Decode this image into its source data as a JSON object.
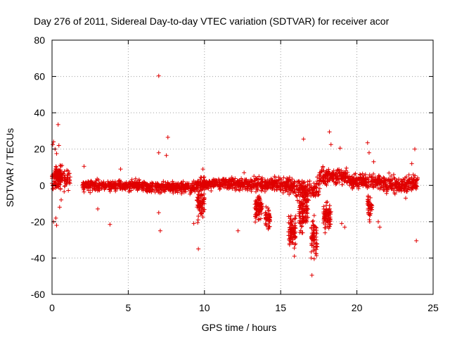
{
  "chart_data": {
    "type": "scatter",
    "title": "Day 276 of 2011, Sidereal Day-to-day VTEC variation (SDTVAR) for receiver acor",
    "xlabel": "GPS time / hours",
    "ylabel": "SDTVAR / TECUs",
    "xlim": [
      0,
      25
    ],
    "ylim": [
      -60,
      80
    ],
    "xticks": [
      "0",
      "5",
      "10",
      "15",
      "20",
      "25"
    ],
    "yticks": [
      "80",
      "60",
      "40",
      "20",
      "0",
      "-20",
      "-40",
      "-60"
    ],
    "grid": true,
    "series": [
      {
        "name": "SDTVAR",
        "color": "#e00000",
        "marker": "+",
        "points": [
          [
            0.05,
            22.5
          ],
          [
            0.1,
            24.0
          ],
          [
            0.2,
            20.0
          ],
          [
            0.4,
            33.5
          ],
          [
            0.45,
            22.0
          ],
          [
            0.3,
            17.5
          ],
          [
            0.1,
            -20.0
          ],
          [
            0.3,
            -22.0
          ],
          [
            0.25,
            -18.0
          ],
          [
            0.6,
            -8.0
          ],
          [
            0.5,
            -12.0
          ],
          [
            7.0,
            60.3
          ],
          [
            7.6,
            26.5
          ],
          [
            7.0,
            18.0
          ],
          [
            7.5,
            16.5
          ],
          [
            7.1,
            -25.0
          ],
          [
            7.0,
            -15.0
          ],
          [
            9.6,
            -35.0
          ],
          [
            9.3,
            -21.0
          ],
          [
            9.9,
            9.0
          ],
          [
            12.2,
            -25.0
          ],
          [
            12.6,
            7.0
          ],
          [
            15.9,
            -39.0
          ],
          [
            16.5,
            25.5
          ],
          [
            17.0,
            -40.0
          ],
          [
            17.05,
            -49.5
          ],
          [
            17.5,
            -5.0
          ],
          [
            18.2,
            29.5
          ],
          [
            18.3,
            22.5
          ],
          [
            18.9,
            20.5
          ],
          [
            19.0,
            -21.0
          ],
          [
            19.2,
            -23.0
          ],
          [
            20.7,
            23.5
          ],
          [
            20.8,
            18.0
          ],
          [
            21.4,
            -20.0
          ],
          [
            21.5,
            -23.0
          ],
          [
            21.1,
            13.0
          ],
          [
            23.9,
            -30.5
          ],
          [
            23.8,
            20.0
          ],
          [
            23.6,
            12.0
          ],
          [
            23.2,
            -7.0
          ],
          [
            3.0,
            -13.0
          ],
          [
            3.8,
            -21.5
          ],
          [
            4.5,
            9.0
          ],
          [
            2.1,
            10.5
          ],
          [
            2.5,
            -4.0
          ]
        ]
      }
    ]
  }
}
